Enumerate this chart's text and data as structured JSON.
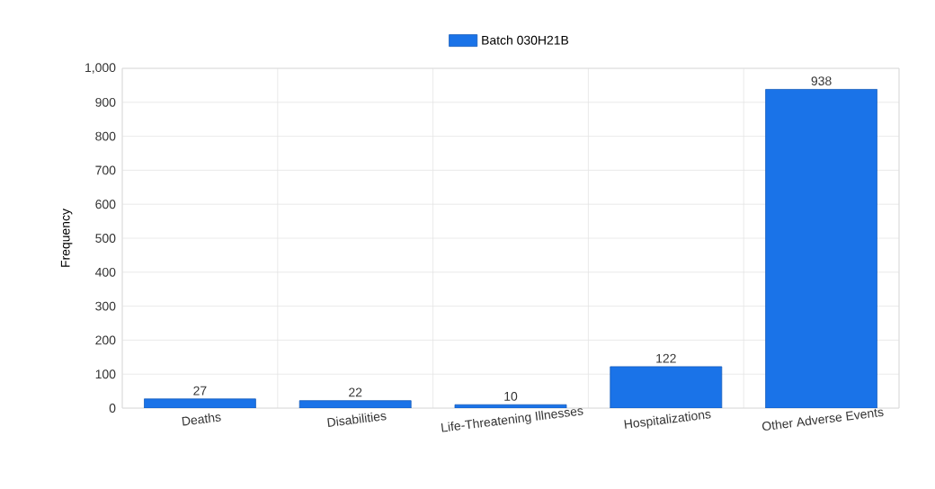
{
  "chart_data": {
    "type": "bar",
    "ylabel": "Frequency",
    "categories": [
      "Deaths",
      "Disabilities",
      "Life-Threatening Illnesses",
      "Hospitalizations",
      "Other Adverse Events"
    ],
    "series": [
      {
        "name": "Batch 030H21B",
        "color": "#1a73e8",
        "values": [
          27,
          22,
          10,
          122,
          938
        ]
      }
    ],
    "ylim": [
      0,
      1000
    ],
    "yticks": [
      0,
      100,
      200,
      300,
      400,
      500,
      600,
      700,
      800,
      900,
      {
        "value": 1000,
        "label": "1,000"
      }
    ],
    "grid": true,
    "legend": "top",
    "data_labels": true
  }
}
